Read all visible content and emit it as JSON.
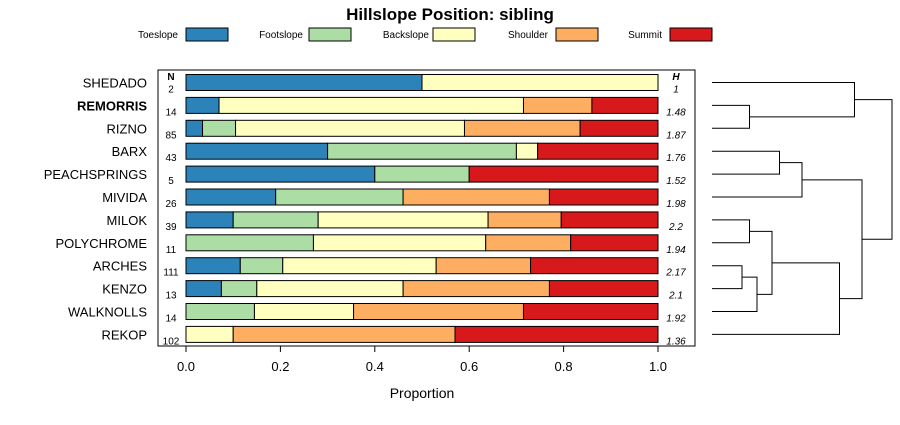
{
  "chart_data": {
    "type": "bar",
    "stacked": true,
    "orientation": "horizontal",
    "title": "Hillslope Position: sibling",
    "xlabel": "Proportion",
    "xlim": [
      0,
      1
    ],
    "x_ticks": [
      "0.0",
      "0.2",
      "0.4",
      "0.6",
      "0.8",
      "1.0"
    ],
    "n_header": "N",
    "h_header": "H",
    "legend_position": "top",
    "series": [
      {
        "name": "Toeslope",
        "color": "#2b83ba"
      },
      {
        "name": "Footslope",
        "color": "#abdda4"
      },
      {
        "name": "Backslope",
        "color": "#ffffbf"
      },
      {
        "name": "Shoulder",
        "color": "#fdae61"
      },
      {
        "name": "Summit",
        "color": "#d7191c"
      }
    ],
    "categories": [
      {
        "name": "SHEDADO",
        "n": "2",
        "h": "1",
        "bold": false,
        "values": [
          0.5,
          0.0,
          0.5,
          0.0,
          0.0
        ]
      },
      {
        "name": "REMORRIS",
        "n": "14",
        "h": "1.48",
        "bold": true,
        "values": [
          0.07,
          0.0,
          0.645,
          0.145,
          0.14
        ]
      },
      {
        "name": "RIZNO",
        "n": "85",
        "h": "1.87",
        "bold": false,
        "values": [
          0.035,
          0.07,
          0.485,
          0.245,
          0.165
        ]
      },
      {
        "name": "BARX",
        "n": "43",
        "h": "1.76",
        "bold": false,
        "values": [
          0.3,
          0.4,
          0.045,
          0.0,
          0.255
        ]
      },
      {
        "name": "PEACHSPRINGS",
        "n": "5",
        "h": "1.52",
        "bold": false,
        "values": [
          0.4,
          0.2,
          0.0,
          0.0,
          0.4
        ]
      },
      {
        "name": "MIVIDA",
        "n": "26",
        "h": "1.98",
        "bold": false,
        "values": [
          0.19,
          0.27,
          0.0,
          0.31,
          0.23
        ]
      },
      {
        "name": "MILOK",
        "n": "39",
        "h": "2.2",
        "bold": false,
        "values": [
          0.1,
          0.18,
          0.36,
          0.155,
          0.205
        ]
      },
      {
        "name": "POLYCHROME",
        "n": "11",
        "h": "1.94",
        "bold": false,
        "values": [
          0.0,
          0.27,
          0.365,
          0.18,
          0.185
        ]
      },
      {
        "name": "ARCHES",
        "n": "111",
        "h": "2.17",
        "bold": false,
        "values": [
          0.115,
          0.09,
          0.325,
          0.2,
          0.27
        ]
      },
      {
        "name": "KENZO",
        "n": "13",
        "h": "2.1",
        "bold": false,
        "values": [
          0.075,
          0.075,
          0.31,
          0.31,
          0.23
        ]
      },
      {
        "name": "WALKNOLLS",
        "n": "14",
        "h": "1.92",
        "bold": false,
        "values": [
          0.0,
          0.145,
          0.21,
          0.36,
          0.285
        ]
      },
      {
        "name": "REKOP",
        "n": "102",
        "h": "1.36",
        "bold": false,
        "values": [
          0.0,
          0.0,
          0.1,
          0.47,
          0.43
        ]
      }
    ],
    "dendrogram": {
      "leaf_order": [
        "SHEDADO",
        "REMORRIS",
        "RIZNO",
        "BARX",
        "PEACHSPRINGS",
        "MIVIDA",
        "MILOK",
        "POLYCHROME",
        "ARCHES",
        "KENZO",
        "WALKNOLLS",
        "REKOP"
      ],
      "merges": [
        {
          "left": "REMORRIS",
          "right": "RIZNO",
          "height": 0.25
        },
        {
          "left": "SHEDADO",
          "right": "REMORRIS|RIZNO",
          "height": 0.95
        },
        {
          "left": "BARX",
          "right": "PEACHSPRINGS",
          "height": 0.45
        },
        {
          "left": "BARX|PEACHSPRINGS",
          "right": "MIVIDA",
          "height": 0.6
        },
        {
          "left": "ARCHES",
          "right": "KENZO",
          "height": 0.2
        },
        {
          "left": "MILOK",
          "right": "POLYCHROME",
          "height": 0.25
        },
        {
          "left": "ARCHES|KENZO",
          "right": "WALKNOLLS",
          "height": 0.3
        },
        {
          "left": "MILOK|POLYCHROME",
          "right": "ARCHES|KENZO|WALKNOLLS",
          "height": 0.4
        },
        {
          "left": "MILOK|POLYCHROME|ARCHES|KENZO|WALKNOLLS",
          "right": "REKOP",
          "height": 0.85
        },
        {
          "left": "BARX|PEACHSPRINGS|MIVIDA",
          "right": "MILOK|POLYCHROME|ARCHES|KENZO|WALKNOLLS|REKOP",
          "height": 1.0
        },
        {
          "left": "SHEDADO|REMORRIS|RIZNO",
          "right": "BARX|PEACHSPRINGS|MIVIDA|MILOK|POLYCHROME|ARCHES|KENZO|WALKNOLLS|REKOP",
          "height": 1.2
        }
      ],
      "max_height": 1.2
    }
  }
}
